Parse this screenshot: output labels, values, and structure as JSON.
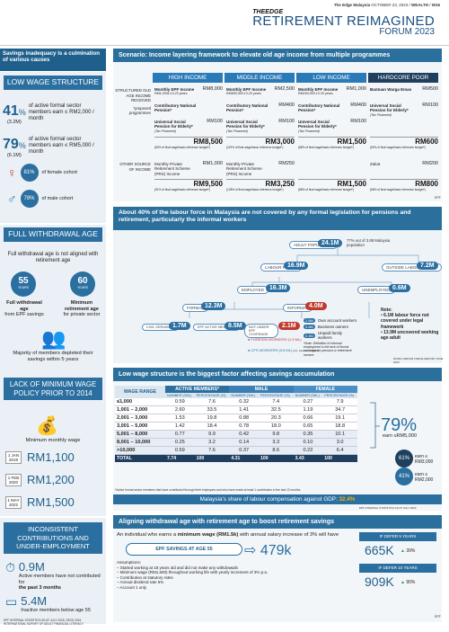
{
  "header": {
    "paper": "The Edge Malaysia",
    "date": "OCTOBER 23, 2023",
    "section": "WEALTH",
    "page": "W15",
    "brand": "THEEDGE",
    "title": "RETIREMENT REIMAGINED",
    "subtitle": "FORUM 2023"
  },
  "left": {
    "intro": "Savings inadequacy is a culmination of various causes",
    "low_wage_title": "LOW WAGE STRUCTURE",
    "p41": "41",
    "p41_unit": "%",
    "p41_sub": "(3.2M)",
    "p41_text": "of active formal sector members earn ≤ RM2,000 / month",
    "p79": "79",
    "p79_unit": "%",
    "p79_sub": "(6.1M)",
    "p79_text": "of active formal sector members earn ≤ RM5,000 / month",
    "p81": "81%",
    "p81_text": "of female cohort",
    "p78": "78%",
    "p78_text": "of male cohort",
    "full_title": "FULL WITHDRAWAL AGE",
    "full_text": "Full withdrawal age is not aligned with retirement age",
    "age55": "55",
    "age60": "60",
    "years": "YEARS",
    "age55_lbl": "Full withdrawal age",
    "age55_sub": "from EPF savings",
    "age60_lbl": "Minimum retirement age",
    "age60_sub": "for private sector",
    "majority": "Majority of members depleted their savings within 5 years",
    "lack_title": "LACK OF MINIMUM WAGE POLICY PRIOR TO 2014",
    "min_wage": "Minimum monthly wage",
    "mw": [
      {
        "date": "1 JAN 2019",
        "amt": "RM1,100"
      },
      {
        "date": "1 FEB 2020",
        "amt": "RM1,200"
      },
      {
        "date": "1 MAY 2022",
        "amt": "RM1,500"
      }
    ],
    "incons_title": "INCONSISTENT CONTRIBUTIONS AND UNDER-EMPLOYMENT",
    "inc1": "0.9M",
    "inc1_t": "Active members have not contributed for",
    "inc1_b": "the past 3 months",
    "inc2": "5.4M",
    "inc2_t": "Inactive members below age 55",
    "src": "EPF INTERNAL STATISTICS AS AT JULY 2023; OECD 2024 INTERNATIONAL SURVEY OF ADULT FINANCIAL LITERACY"
  },
  "scenario": {
    "title": "Scenario: Income layering framework to elevate old age income from multiple programmes",
    "cols": [
      "HIGH INCOME",
      "MIDDLE INCOME",
      "LOW INCOME",
      "HARDCORE POOR"
    ],
    "row1_label": "STRUCTURED OLD AGE INCOME RECEIVED",
    "row1_note": "*proposed programmes",
    "hi": [
      {
        "t": "Monthly EPF Income",
        "s": "RM1,000k-13-20 years",
        "v": "RM8,000"
      },
      {
        "t": "Contributory National Pension*",
        "s": "",
        "v": ""
      },
      {
        "t": "Universal Social Pension for Elderly*",
        "s": "(Tax Financed)",
        "v": "RM100"
      }
    ],
    "mid": [
      {
        "t": "Monthly EPF Income",
        "s": "RM900,000-13-20 years",
        "v": "RM2,500"
      },
      {
        "t": "Contributory National Pension*",
        "s": "",
        "v": "RM400"
      },
      {
        "t": "Universal Social Pension for Elderly*",
        "s": "(Tax Financed)",
        "v": "RM100"
      }
    ],
    "low": [
      {
        "t": "Monthly EPF Income",
        "s": "RM240,000-13-20 years",
        "v": "RM1,000"
      },
      {
        "t": "Contributory National Pension*",
        "s": "",
        "v": "RM400"
      },
      {
        "t": "Universal Social Pension for Elderly*",
        "s": "(Tax Financed)",
        "v": "RM100"
      }
    ],
    "poor": [
      {
        "t": "Bantuan Warga Emas",
        "s": "",
        "v": "RM500"
      },
      {
        "t": "Universal Social Pension for Elderly*",
        "s": "(Tax Financed)",
        "v": "RM100"
      }
    ],
    "tot1": [
      "RM8,500",
      "RM3,000",
      "RM1,500",
      "RM600"
    ],
    "tot1_sub": [
      "(80% of final wage/basic reference budget*)",
      "(119% of final wage/basic reference budget*)",
      "(88% of final wage/basic reference budget*)",
      "(50% of final wage/basic reference budget*)"
    ],
    "row2_label": "OTHER SOURCE OF INCOME",
    "r2": [
      {
        "t": "Monthly Private Retirement Scheme (PRS) Income",
        "v": "RM1,000"
      },
      {
        "t": "Monthly Private Retirement Scheme (PRS) Income",
        "v": "RM250"
      },
      {
        "t": "",
        "v": ""
      },
      {
        "t": "Zakat",
        "v": "RM200"
      }
    ],
    "tot2": [
      "RM9,500",
      "RM3,250",
      "RM1,500",
      "RM800"
    ],
    "tot2_sub": [
      "(91% of final wage/basic reference budget*)",
      "(128% of final wage/basic reference budget*)",
      "(88% of final wage/basic reference budget*)",
      "(66% of final wage/basic reference budget*)"
    ],
    "src": "EPF"
  },
  "labour": {
    "title": "About 40% of the labour force in Malaysia are not covered by any formal legislation for pensions and retirement, particularly the informal workers",
    "adult_lbl": "ADULT POPULATION",
    "adult": "24.1M",
    "adult_note": "77% out of 3.88 Malaysia population",
    "lf_lbl": "LABOUR FORCE",
    "lf": "16.9M",
    "olf_lbl": "OUTSIDE LABOUR FORCE",
    "olf": "7.2M",
    "emp_lbl": "EMPLOYED",
    "emp": "16.3M",
    "unemp_lbl": "UNEMPLOYED",
    "unemp": "0.6M",
    "formal_lbl": "FORMAL",
    "formal": "12.3M",
    "informal_lbl": "INFORMAL",
    "informal": "4.0M",
    "civil_lbl": "CIVIL SERVANTS",
    "civil": "1.7M",
    "epf_lbl": "EPF ACTIVE MEMBERS",
    "epf": "8.5M",
    "notcov_lbl": "NOT UNDER EPF COVERAGE",
    "notcov": "2.1M",
    "fw": "FOREIGN WORKERS (1.5 ML)",
    "cfs": "CFS WORKERS (0.6 ML)",
    "cfs_sub": "(inc. interns, contract)",
    "inf": [
      {
        "v": "2.8M",
        "t": "Own account workers"
      },
      {
        "v": "0.8M",
        "t": "Business owners"
      },
      {
        "v": "0.4M",
        "t": "Unpaid family workers"
      }
    ],
    "inf_note": "*Note: Definition of informal employment is the lack of formal coverage for pension or retirement income.",
    "note_title": "Note:",
    "notes": [
      "6.1M labour force not covered under legal framework",
      "13.9M uncovered working age adult"
    ],
    "src": "DOSM LABOUR FORCE REPORT JUNE 2023"
  },
  "wage": {
    "title": "Low wage structure is the biggest factor affecting savings accumulation",
    "groups": [
      "ACTIVE MEMBERS*",
      "MALE",
      "FEMALE"
    ],
    "range_hdr": "WAGE RANGE",
    "sub": [
      "NUMBER ('MIL)",
      "PERCENTAGE (%)",
      "NUMBER ('MIL)",
      "PERCENTAGE (%)",
      "NUMBER ('MIL)",
      "PERCENTAGE (%)"
    ],
    "rows": [
      [
        "≤1,000",
        "0.59",
        "7.6",
        "0.32",
        "7.4",
        "0.27",
        "7.9"
      ],
      [
        "1,001 – 2,000",
        "2.60",
        "33.5",
        "1.41",
        "32.5",
        "1.19",
        "34.7"
      ],
      [
        "2,001 – 3,000",
        "1.53",
        "19.8",
        "0.88",
        "20.3",
        "0.66",
        "19.1"
      ],
      [
        "3,001 – 5,000",
        "1.42",
        "18.4",
        "0.78",
        "18.0",
        "0.65",
        "18.8"
      ],
      [
        "5,001 – 8,000",
        "0.77",
        "9.9",
        "0.42",
        "9.8",
        "0.35",
        "10.1"
      ],
      [
        "8,001 – 10,000",
        "0.25",
        "3.2",
        "0.14",
        "3.3",
        "0.10",
        "3.0"
      ],
      [
        ">10,000",
        "0.59",
        "7.6",
        "0.37",
        "8.6",
        "0.22",
        "6.4"
      ]
    ],
    "total": [
      "TOTAL",
      "7.74",
      "100",
      "4.31",
      "100",
      "3.43",
      "100"
    ],
    "foot": "*Active formal sector members that have contributed through their employers and who have made at least 1 contribution in the last 12 months",
    "p79": "79%",
    "p79_t": "earn ≤RM5,000",
    "p61": "61%",
    "p61_t": "earn ≤ RM3,000",
    "p41": "41%",
    "p41_t": "earn ≤ RM2,000",
    "share": "Malaysia's share of labour compensation against GDP:",
    "share_v": "32.4%",
    "src": "EPF INTERNAL STATISTICS AS AT JULY 2023"
  },
  "align": {
    "title": "Aligning withdrawal age with retirement age to boost retirement savings",
    "intro_a": "An individual who earns a ",
    "intro_b": "minimum wage (RM1.5k)",
    "intro_c": " with annual salary increase of 3% will have",
    "savings_lbl": "EPF SAVINGS AT AGE 55",
    "savings": "479k",
    "assump_title": "Assumptions:",
    "assump": [
      "Started working at 18 years old and did not make any withdrawals",
      "Minimum wage (RM1,500) throughout working life with yearly increment of 3% p.a.",
      "Contribution at statutory rates",
      "Annual dividend rate 5%",
      "Account 1 only"
    ],
    "d5_lbl": "IF DEFER 5 YEARS",
    "d5": "665K",
    "d5_p": "39%",
    "d10_lbl": "IF DEFER 10 YEARS",
    "d10": "909K",
    "d10_p": "90%",
    "src": "EPF"
  },
  "colors": {
    "primary": "#2b6fa0",
    "dark": "#1f5f8b",
    "accent": "#c0392b",
    "highlight": "#f4b400"
  }
}
